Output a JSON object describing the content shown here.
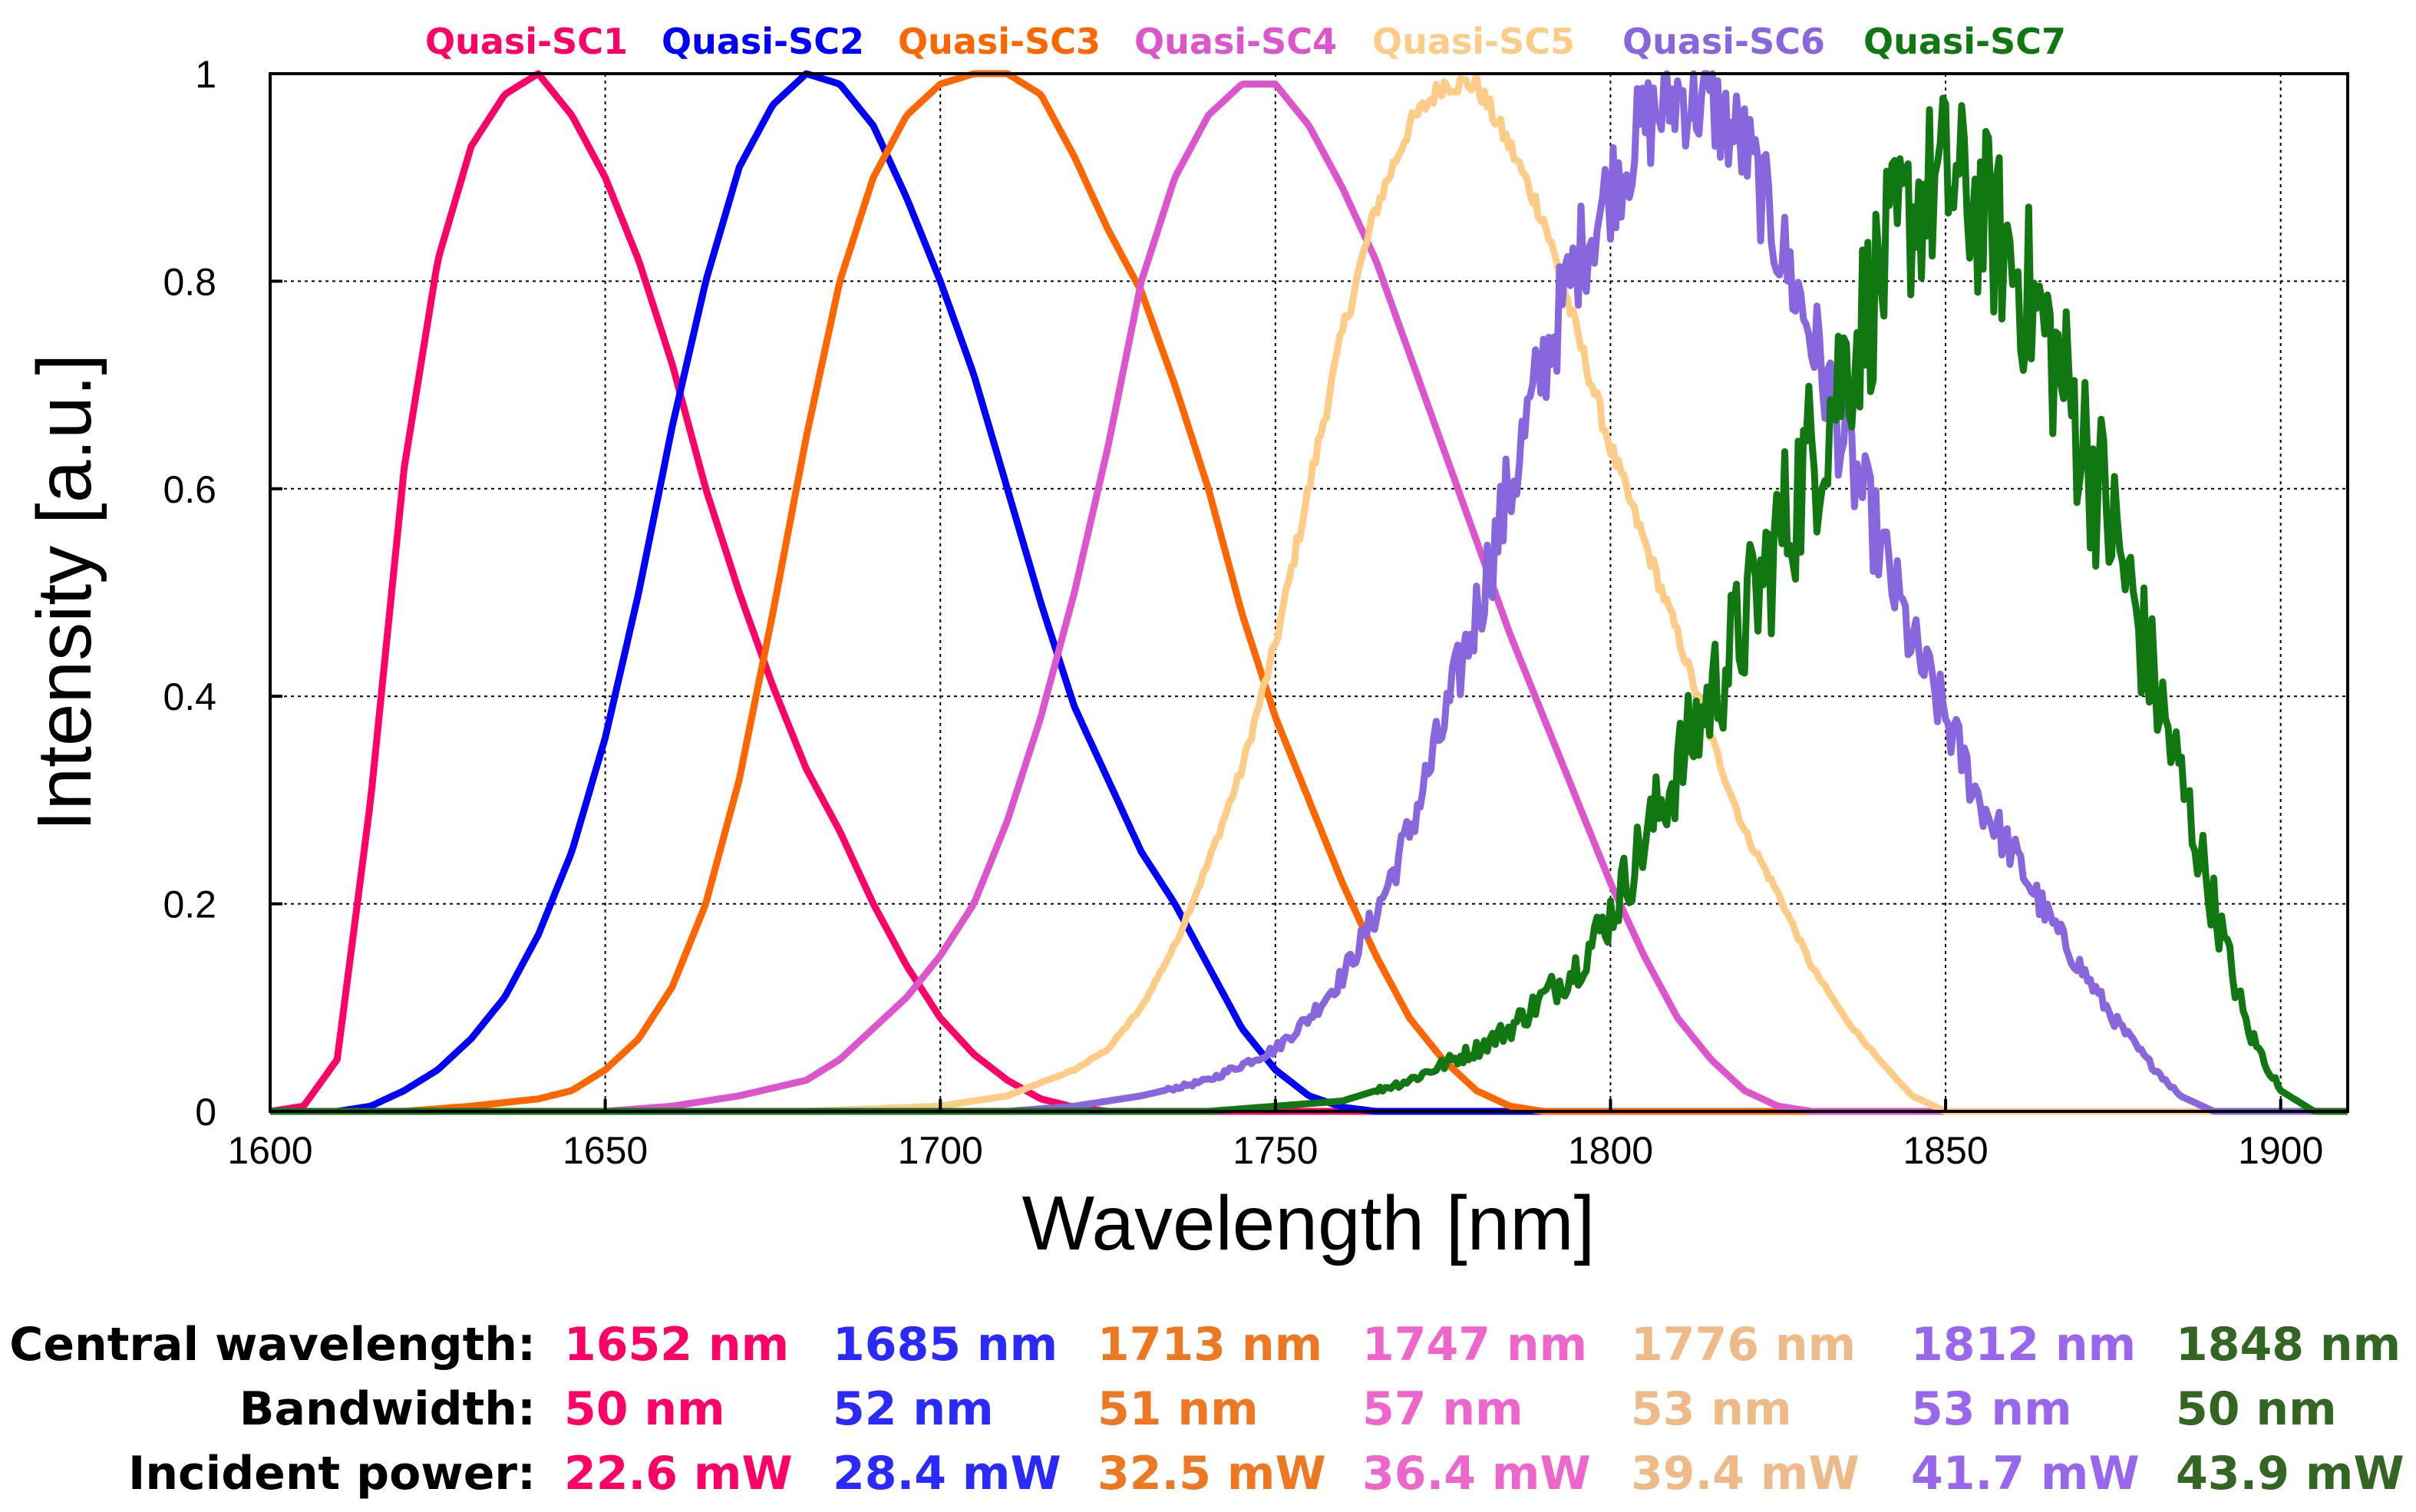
{
  "chart_data": {
    "type": "line",
    "title": "",
    "xlabel": "Wavelength [nm]",
    "ylabel": "Intensity [a.u.]",
    "xlim": [
      1600,
      1910
    ],
    "ylim": [
      0,
      1
    ],
    "xticks": [
      1600,
      1650,
      1700,
      1750,
      1800,
      1850,
      1900
    ],
    "xtick_labels": [
      "1600",
      "1650",
      "1700",
      "1750",
      "1800",
      "1850",
      "1900"
    ],
    "yticks": [
      0,
      0.2,
      0.4,
      0.6,
      0.8,
      1
    ],
    "ytick_labels": [
      "0",
      "0.2",
      "0.4",
      "0.6",
      "0.8",
      "1"
    ],
    "grid": true,
    "legend_position": "top",
    "series": [
      {
        "name": "Quasi-SC1",
        "color": "#ff0066",
        "noise": 0,
        "x": [
          1600,
          1605,
          1610,
          1615,
          1620,
          1625,
          1630,
          1635,
          1640,
          1645,
          1650,
          1655,
          1660,
          1665,
          1670,
          1675,
          1680,
          1685,
          1690,
          1695,
          1700,
          1705,
          1710,
          1715,
          1720,
          1725
        ],
        "y": [
          0,
          0.005,
          0.05,
          0.3,
          0.62,
          0.82,
          0.93,
          0.98,
          1.0,
          0.96,
          0.9,
          0.82,
          0.72,
          0.6,
          0.5,
          0.41,
          0.33,
          0.27,
          0.2,
          0.14,
          0.09,
          0.055,
          0.03,
          0.012,
          0.004,
          0
        ]
      },
      {
        "name": "Quasi-SC2",
        "color": "#0000ff",
        "noise": 0,
        "x": [
          1610,
          1615,
          1620,
          1625,
          1630,
          1635,
          1640,
          1645,
          1650,
          1655,
          1660,
          1665,
          1670,
          1675,
          1680,
          1685,
          1690,
          1695,
          1700,
          1705,
          1710,
          1715,
          1720,
          1725,
          1730,
          1735,
          1740,
          1745,
          1750,
          1755,
          1760,
          1765
        ],
        "y": [
          0,
          0.005,
          0.02,
          0.04,
          0.07,
          0.11,
          0.17,
          0.25,
          0.36,
          0.5,
          0.66,
          0.8,
          0.91,
          0.97,
          1.0,
          0.99,
          0.95,
          0.88,
          0.8,
          0.71,
          0.6,
          0.49,
          0.39,
          0.32,
          0.25,
          0.2,
          0.14,
          0.08,
          0.04,
          0.015,
          0.004,
          0
        ]
      },
      {
        "name": "Quasi-SC3",
        "color": "#ff6600",
        "noise": 0,
        "x": [
          1620,
          1630,
          1640,
          1645,
          1650,
          1655,
          1660,
          1665,
          1670,
          1675,
          1680,
          1685,
          1690,
          1695,
          1700,
          1705,
          1710,
          1715,
          1720,
          1725,
          1730,
          1735,
          1740,
          1745,
          1750,
          1755,
          1760,
          1765,
          1770,
          1775,
          1780,
          1785,
          1790
        ],
        "y": [
          0,
          0.005,
          0.012,
          0.02,
          0.04,
          0.07,
          0.12,
          0.2,
          0.32,
          0.48,
          0.65,
          0.8,
          0.9,
          0.96,
          0.99,
          1.0,
          1.0,
          0.98,
          0.92,
          0.85,
          0.79,
          0.7,
          0.6,
          0.48,
          0.38,
          0.3,
          0.22,
          0.15,
          0.09,
          0.05,
          0.02,
          0.005,
          0
        ]
      },
      {
        "name": "Quasi-SC4",
        "color": "#dd55cc",
        "noise": 0,
        "x": [
          1650,
          1660,
          1670,
          1680,
          1685,
          1690,
          1695,
          1700,
          1705,
          1710,
          1715,
          1720,
          1725,
          1730,
          1735,
          1740,
          1745,
          1750,
          1755,
          1760,
          1765,
          1770,
          1775,
          1780,
          1785,
          1790,
          1795,
          1800,
          1805,
          1810,
          1815,
          1820,
          1825,
          1830
        ],
        "y": [
          0,
          0.005,
          0.015,
          0.03,
          0.05,
          0.08,
          0.11,
          0.15,
          0.2,
          0.28,
          0.38,
          0.5,
          0.64,
          0.8,
          0.9,
          0.96,
          0.99,
          0.99,
          0.95,
          0.89,
          0.82,
          0.73,
          0.64,
          0.55,
          0.46,
          0.38,
          0.3,
          0.22,
          0.15,
          0.09,
          0.05,
          0.02,
          0.005,
          0
        ]
      },
      {
        "name": "Quasi-SC5",
        "color": "#ffcc88",
        "noise": 0.01,
        "x": [
          1680,
          1700,
          1710,
          1720,
          1725,
          1730,
          1735,
          1740,
          1745,
          1750,
          1755,
          1760,
          1765,
          1770,
          1775,
          1780,
          1785,
          1790,
          1795,
          1800,
          1805,
          1810,
          1815,
          1820,
          1825,
          1830,
          1835,
          1840,
          1845,
          1850
        ],
        "y": [
          0,
          0.005,
          0.015,
          0.04,
          0.06,
          0.1,
          0.16,
          0.24,
          0.33,
          0.45,
          0.6,
          0.75,
          0.87,
          0.95,
          0.99,
          0.99,
          0.93,
          0.86,
          0.75,
          0.64,
          0.55,
          0.46,
          0.36,
          0.27,
          0.21,
          0.14,
          0.09,
          0.05,
          0.015,
          0
        ]
      },
      {
        "name": "Quasi-SC6",
        "color": "#8866dd",
        "noise": 0.05,
        "x": [
          1710,
          1720,
          1730,
          1740,
          1745,
          1750,
          1755,
          1760,
          1765,
          1770,
          1775,
          1780,
          1785,
          1790,
          1795,
          1800,
          1805,
          1810,
          1815,
          1820,
          1825,
          1830,
          1835,
          1840,
          1845,
          1850,
          1855,
          1860,
          1865,
          1870,
          1875,
          1880,
          1885,
          1890
        ],
        "y": [
          0,
          0.005,
          0.015,
          0.03,
          0.045,
          0.06,
          0.09,
          0.13,
          0.19,
          0.27,
          0.37,
          0.48,
          0.6,
          0.72,
          0.82,
          0.89,
          0.95,
          0.98,
          0.97,
          0.93,
          0.84,
          0.75,
          0.64,
          0.55,
          0.45,
          0.38,
          0.3,
          0.25,
          0.19,
          0.14,
          0.09,
          0.05,
          0.015,
          0
        ]
      },
      {
        "name": "Quasi-SC7",
        "color": "#117711",
        "noise": 0.09,
        "x": [
          1740,
          1760,
          1770,
          1775,
          1780,
          1785,
          1790,
          1795,
          1800,
          1805,
          1810,
          1815,
          1820,
          1825,
          1830,
          1835,
          1840,
          1845,
          1850,
          1855,
          1860,
          1865,
          1870,
          1875,
          1880,
          1885,
          1890,
          1895,
          1900,
          1905
        ],
        "y": [
          0,
          0.01,
          0.03,
          0.045,
          0.06,
          0.08,
          0.11,
          0.14,
          0.19,
          0.26,
          0.33,
          0.4,
          0.47,
          0.55,
          0.63,
          0.72,
          0.8,
          0.87,
          0.9,
          0.87,
          0.82,
          0.75,
          0.66,
          0.56,
          0.44,
          0.32,
          0.2,
          0.08,
          0.02,
          0
        ]
      }
    ]
  },
  "table": {
    "rows": [
      {
        "label": "Central wavelength:",
        "cells": [
          "1652 nm",
          "1685 nm",
          "1713 nm",
          "1747 nm",
          "1776 nm",
          "1812 nm",
          "1848 nm"
        ]
      },
      {
        "label": "Bandwidth:",
        "cells": [
          "50 nm",
          "52 nm",
          "51 nm",
          "57 nm",
          "53 nm",
          "53 nm",
          "50 nm"
        ]
      },
      {
        "label": "Incident power:",
        "cells": [
          "22.6 mW",
          "28.4 mW",
          "32.5 mW",
          "36.4 mW",
          "39.4 mW",
          "41.7 mW",
          "43.9 mW"
        ]
      }
    ],
    "colors": [
      "#ff0066",
      "#2a2aff",
      "#ee7722",
      "#ee66cc",
      "#eebb88",
      "#9966ee",
      "#336622"
    ]
  }
}
